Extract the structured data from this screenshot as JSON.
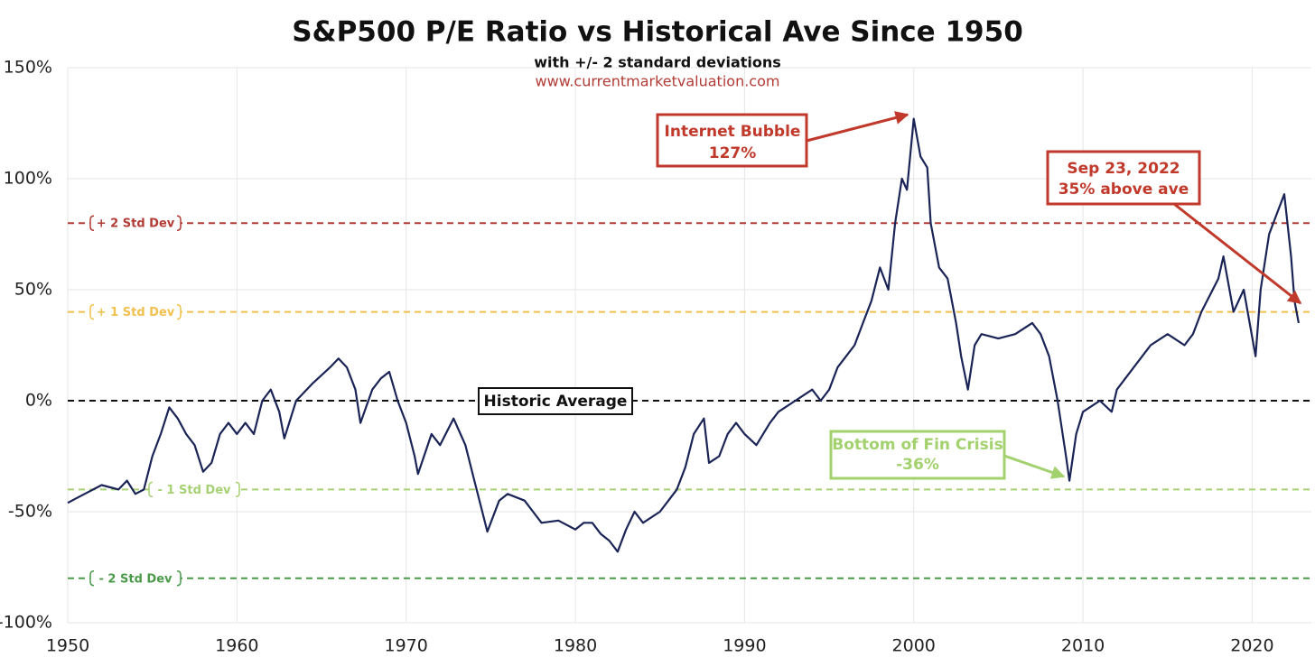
{
  "chart_data": {
    "type": "line",
    "title": "S&P500 P/E Ratio vs Historical Ave Since 1950",
    "subtitle": "with +/- 2 standard deviations",
    "source": "www.currentmarketvaluation.com",
    "xlim": [
      1950,
      2023.5
    ],
    "xticks": [
      1950,
      1960,
      1970,
      1980,
      1990,
      2000,
      2010,
      2020
    ],
    "ylim": [
      -100,
      150
    ],
    "yticks": [
      {
        "value": -100,
        "label": "-100%"
      },
      {
        "value": -50,
        "label": "-50%"
      },
      {
        "value": 0,
        "label": "0%"
      },
      {
        "value": 50,
        "label": "50%"
      },
      {
        "value": 100,
        "label": "100%"
      },
      {
        "value": 150,
        "label": "150%"
      }
    ],
    "grid": true,
    "series": [
      {
        "color": "#1a2456",
        "x": [
          1950,
          1950.5,
          1951,
          1952,
          1953,
          1953.5,
          1954,
          1954.5,
          1955,
          1955.5,
          1956,
          1956.5,
          1957,
          1957.5,
          1958,
          1958.5,
          1959,
          1959.5,
          1960,
          1960.5,
          1961,
          1961.5,
          1962,
          1962.5,
          1962.8,
          1963.5,
          1964.5,
          1965.5,
          1966,
          1966.5,
          1967,
          1967.3,
          1968,
          1968.5,
          1969,
          1969.5,
          1970,
          1970.5,
          1970.7,
          1971.5,
          1972,
          1972.8,
          1973.5,
          1974,
          1974.5,
          1974.8,
          1975.5,
          1976,
          1977,
          1977.5,
          1978,
          1979,
          1980,
          1980.5,
          1981,
          1981.5,
          1982,
          1982.5,
          1983,
          1983.5,
          1984,
          1985,
          1985.5,
          1986,
          1986.5,
          1987,
          1987.6,
          1987.9,
          1988.5,
          1989,
          1989.5,
          1990,
          1990.7,
          1991.5,
          1992,
          1993,
          1994,
          1994.5,
          1995,
          1995.5,
          1996,
          1996.5,
          1997,
          1997.5,
          1998,
          1998.5,
          1998.9,
          1999.3,
          1999.6,
          2000,
          2000.4,
          2000.8,
          2001,
          2001.5,
          2002,
          2002.5,
          2002.8,
          2003.2,
          2003.6,
          2004,
          2005,
          2006,
          2007,
          2007.5,
          2008,
          2008.5,
          2009,
          2009.2,
          2009.6,
          2010,
          2011,
          2011.7,
          2012,
          2013,
          2014,
          2015,
          2016,
          2016.5,
          2017,
          2018,
          2018.3,
          2018.9,
          2019.5,
          2020.2,
          2020.5,
          2021,
          2021.5,
          2021.9,
          2022.3,
          2022.5,
          2022.75
        ],
        "values": [
          -46,
          -44,
          -42,
          -38,
          -40,
          -36,
          -42,
          -40,
          -25,
          -15,
          -3,
          -8,
          -15,
          -20,
          -32,
          -28,
          -15,
          -10,
          -15,
          -10,
          -15,
          0,
          5,
          -5,
          -17,
          0,
          8,
          15,
          19,
          15,
          5,
          -10,
          5,
          10,
          13,
          0,
          -10,
          -25,
          -33,
          -15,
          -20,
          -8,
          -20,
          -35,
          -50,
          -59,
          -45,
          -42,
          -45,
          -50,
          -55,
          -54,
          -58,
          -55,
          -55,
          -60,
          -63,
          -68,
          -58,
          -50,
          -55,
          -50,
          -45,
          -40,
          -30,
          -15,
          -8,
          -28,
          -25,
          -15,
          -10,
          -15,
          -20,
          -10,
          -5,
          0,
          5,
          0,
          5,
          15,
          20,
          25,
          35,
          45,
          60,
          50,
          80,
          100,
          95,
          127,
          110,
          105,
          80,
          60,
          55,
          35,
          20,
          5,
          25,
          30,
          28,
          30,
          35,
          30,
          20,
          0,
          -25,
          -36,
          -15,
          -5,
          0,
          -5,
          5,
          15,
          25,
          30,
          25,
          30,
          40,
          55,
          65,
          40,
          50,
          20,
          50,
          75,
          85,
          93,
          65,
          45,
          35
        ]
      }
    ],
    "reference_lines": [
      {
        "value": 80,
        "label": "+ 2 Std Dev",
        "color": "#b23b35"
      },
      {
        "value": 40,
        "label": "+ 1 Std Dev",
        "color": "#f2c04e"
      },
      {
        "value": 0,
        "label": "Historic Average",
        "color": "#111111"
      },
      {
        "value": -40,
        "label": "- 1 Std Dev",
        "color": "#a6d173"
      },
      {
        "value": -80,
        "label": "- 2 Std Dev",
        "color": "#4a9a4a"
      }
    ],
    "annotations": [
      {
        "lines": [
          "Internet Bubble",
          "127%"
        ]
      },
      {
        "lines": [
          "Sep 23, 2022",
          "35% above ave"
        ]
      },
      {
        "lines": [
          "Bottom of Fin Crisis",
          "-36%"
        ]
      }
    ]
  }
}
